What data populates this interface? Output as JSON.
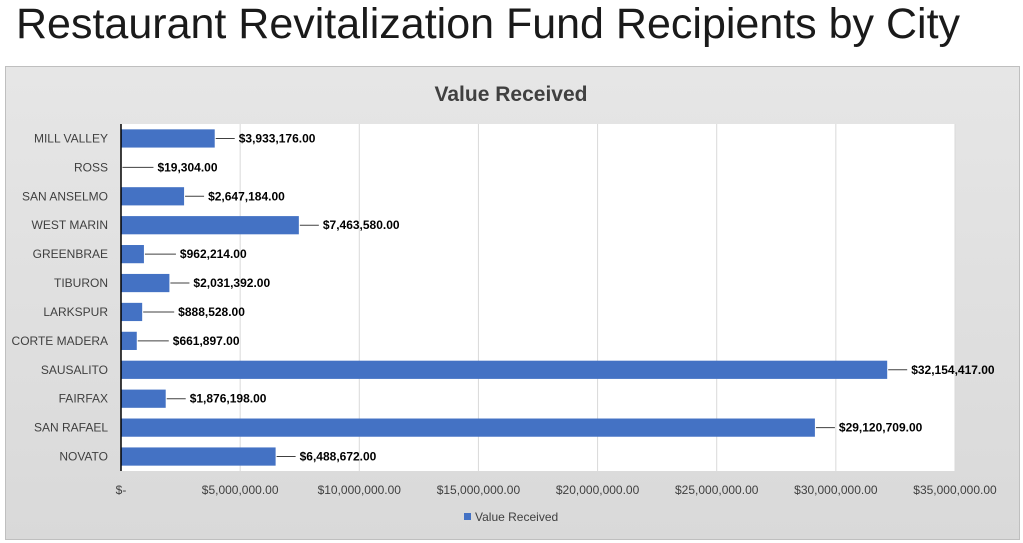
{
  "slide": {
    "title": "Restaurant Revitalization Fund Recipients by City"
  },
  "colors": {
    "bar": "#4472C4",
    "plot_bg": "#ffffff",
    "grid": "#d9d9d9",
    "axis": "#000000",
    "leader": "#404040"
  },
  "chart_data": {
    "type": "bar",
    "orientation": "horizontal",
    "title": "Value Received",
    "xlabel": "",
    "ylabel": "",
    "xlim": [
      0,
      35000000
    ],
    "x_ticks": [
      0,
      5000000,
      10000000,
      15000000,
      20000000,
      25000000,
      30000000,
      35000000
    ],
    "x_tick_labels": [
      "$-",
      "$5,000,000.00",
      "$10,000,000.00",
      "$15,000,000.00",
      "$20,000,000.00",
      "$25,000,000.00",
      "$30,000,000.00",
      "$35,000,000.00"
    ],
    "grid": true,
    "legend_position": "bottom",
    "categories": [
      "MILL VALLEY",
      "ROSS",
      "SAN ANSELMO",
      "WEST MARIN",
      "GREENBRAE",
      "TIBURON",
      "LARKSPUR",
      "CORTE MADERA",
      "SAUSALITO",
      "FAIRFAX",
      "SAN RAFAEL",
      "NOVATO"
    ],
    "series": [
      {
        "name": "Value Received",
        "values": [
          3933176,
          19304,
          2647184,
          7463580,
          962214,
          2031392,
          888528,
          661897,
          32154417,
          1876198,
          29120709,
          6488672
        ],
        "data_labels": [
          "$3,933,176.00",
          "$19,304.00",
          "$2,647,184.00",
          "$7,463,580.00",
          "$962,214.00",
          "$2,031,392.00",
          "$888,528.00",
          "$661,897.00",
          "$32,154,417.00",
          "$1,876,198.00",
          "$29,120,709.00",
          "$6,488,672.00"
        ]
      }
    ]
  }
}
